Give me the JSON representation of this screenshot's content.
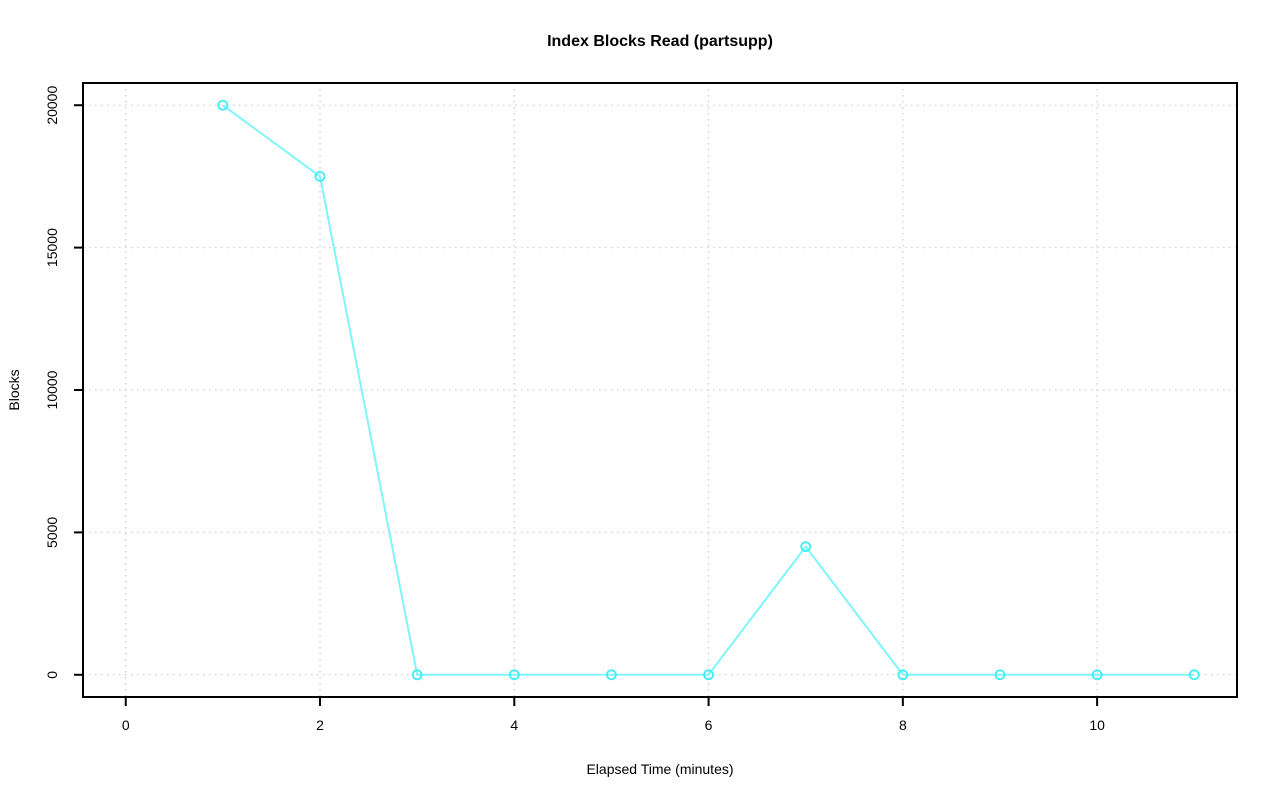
{
  "figure": {
    "title": "Index Blocks Read (partsupp)",
    "xlabel": "Elapsed Time (minutes)",
    "ylabel": "Blocks"
  },
  "chart_data": {
    "type": "line",
    "title": "Index Blocks Read (partsupp)",
    "xlabel": "Elapsed Time (minutes)",
    "ylabel": "Blocks",
    "x": [
      1,
      2,
      3,
      4,
      5,
      6,
      7,
      8,
      9,
      10,
      11
    ],
    "y": [
      20000,
      17500,
      0,
      0,
      0,
      0,
      4500,
      0,
      0,
      0,
      0
    ],
    "xticks": [
      0,
      2,
      4,
      6,
      8,
      10
    ],
    "yticks": [
      0,
      5000,
      10000,
      15000,
      20000
    ],
    "xtick_labels": [
      "0",
      "2",
      "4",
      "6",
      "8",
      "10"
    ],
    "ytick_labels": [
      "0",
      "5000",
      "10000",
      "15000",
      "20000"
    ],
    "xlim": [
      -0.44,
      11.44
    ],
    "ylim": [
      -780,
      20780
    ],
    "grid": true,
    "grid_style": "dotted",
    "legend": "none",
    "marker": "open-circle",
    "colors": {
      "line": "#7FF5FB",
      "marker": "#3FEDF4",
      "grid": "#CFCFCF",
      "box": "#000000",
      "text": "#000000",
      "background": "#FFFFFF"
    }
  }
}
